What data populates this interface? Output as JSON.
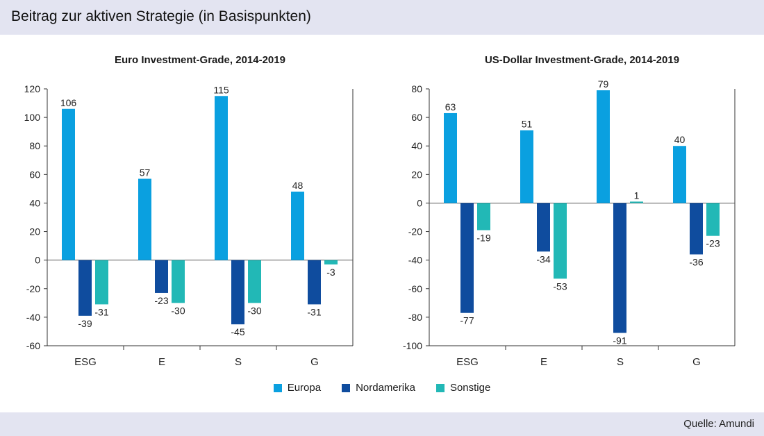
{
  "header": {
    "title": "Beitrag zur aktiven Strategie (in Basispunkten)"
  },
  "footer": {
    "source": "Quelle: Amundi"
  },
  "legend": [
    {
      "name": "Europa",
      "color": "#0aa0e0"
    },
    {
      "name": "Nordamerika",
      "color": "#0f4c9e"
    },
    {
      "name": "Sonstige",
      "color": "#22b8b6"
    }
  ],
  "chart_data": [
    {
      "type": "bar",
      "title": "Euro Investment-Grade, 2014-2019",
      "xlabel": "",
      "ylabel": "",
      "categories": [
        "ESG",
        "E",
        "S",
        "G"
      ],
      "ylim": [
        -60,
        120
      ],
      "yticks": [
        120,
        100,
        80,
        60,
        40,
        20,
        0,
        -20,
        -40,
        -60
      ],
      "grid": false,
      "series": [
        {
          "name": "Europa",
          "values": [
            106,
            57,
            115,
            48
          ]
        },
        {
          "name": "Nordamerika",
          "values": [
            -39,
            -23,
            -45,
            -31
          ]
        },
        {
          "name": "Sonstige",
          "values": [
            -31,
            -30,
            -30,
            -3
          ]
        }
      ]
    },
    {
      "type": "bar",
      "title": "US-Dollar Investment-Grade, 2014-2019",
      "xlabel": "",
      "ylabel": "",
      "categories": [
        "ESG",
        "E",
        "S",
        "G"
      ],
      "ylim": [
        -100,
        80
      ],
      "yticks": [
        80,
        60,
        40,
        20,
        0,
        -20,
        -40,
        -60,
        -80,
        -100
      ],
      "grid": false,
      "series": [
        {
          "name": "Europa",
          "values": [
            63,
            51,
            79,
            40
          ]
        },
        {
          "name": "Nordamerika",
          "values": [
            -77,
            -34,
            -91,
            -36
          ]
        },
        {
          "name": "Sonstige",
          "values": [
            -19,
            -53,
            1,
            -23
          ]
        }
      ]
    }
  ]
}
